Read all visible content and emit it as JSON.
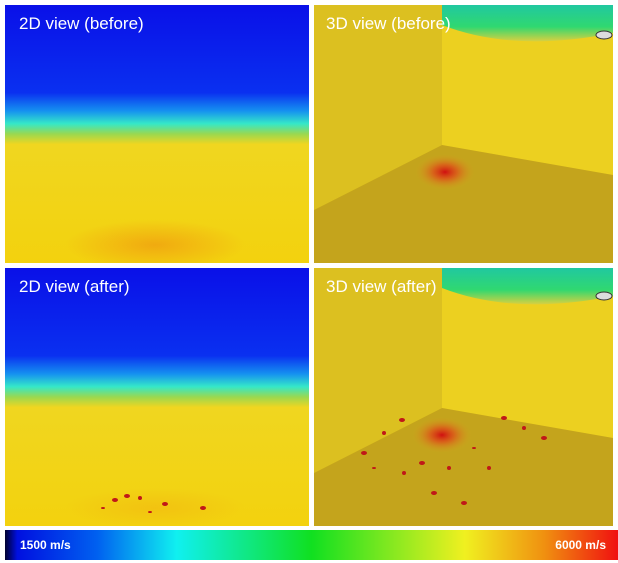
{
  "panels": [
    {
      "label": "2D view (before)"
    },
    {
      "label": "3D view (before)"
    },
    {
      "label": "2D view (after)"
    },
    {
      "label": "3D view (after)"
    }
  ],
  "colorbar": {
    "min_label": "1500 m/s",
    "max_label": "6000 m/s"
  }
}
